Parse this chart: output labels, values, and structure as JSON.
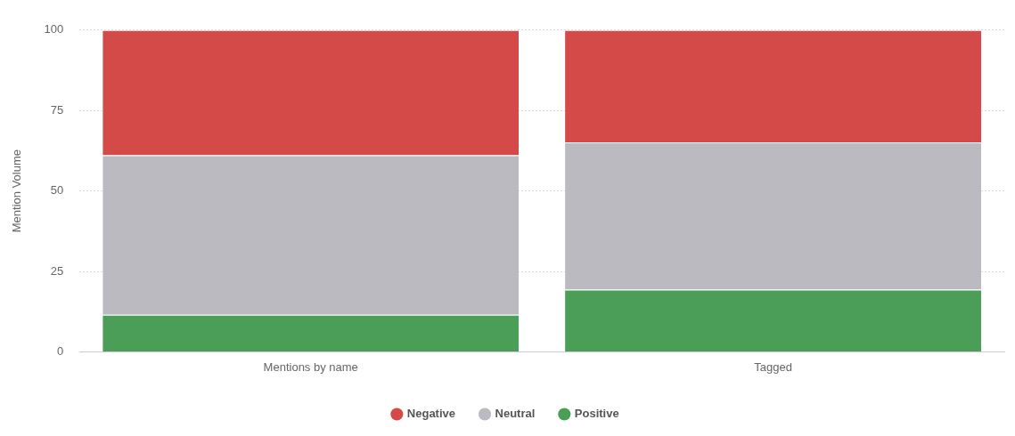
{
  "chart_data": {
    "type": "bar",
    "ylabel": "Mention Volume",
    "categories": [
      "Mentions by name",
      "Tagged"
    ],
    "stacked": true,
    "series": [
      {
        "name": "Positive",
        "color": "#4a9e57",
        "values": [
          11.5,
          19.3
        ]
      },
      {
        "name": "Neutral",
        "color": "#babac0",
        "values": [
          49.6,
          45.8
        ]
      },
      {
        "name": "Negative",
        "color": "#d44a48",
        "values": [
          38.9,
          34.9
        ]
      }
    ],
    "ylim": [
      0,
      100
    ],
    "yticks": [
      0,
      25,
      50,
      75,
      100
    ],
    "grid": "y",
    "legend": "bottom"
  }
}
